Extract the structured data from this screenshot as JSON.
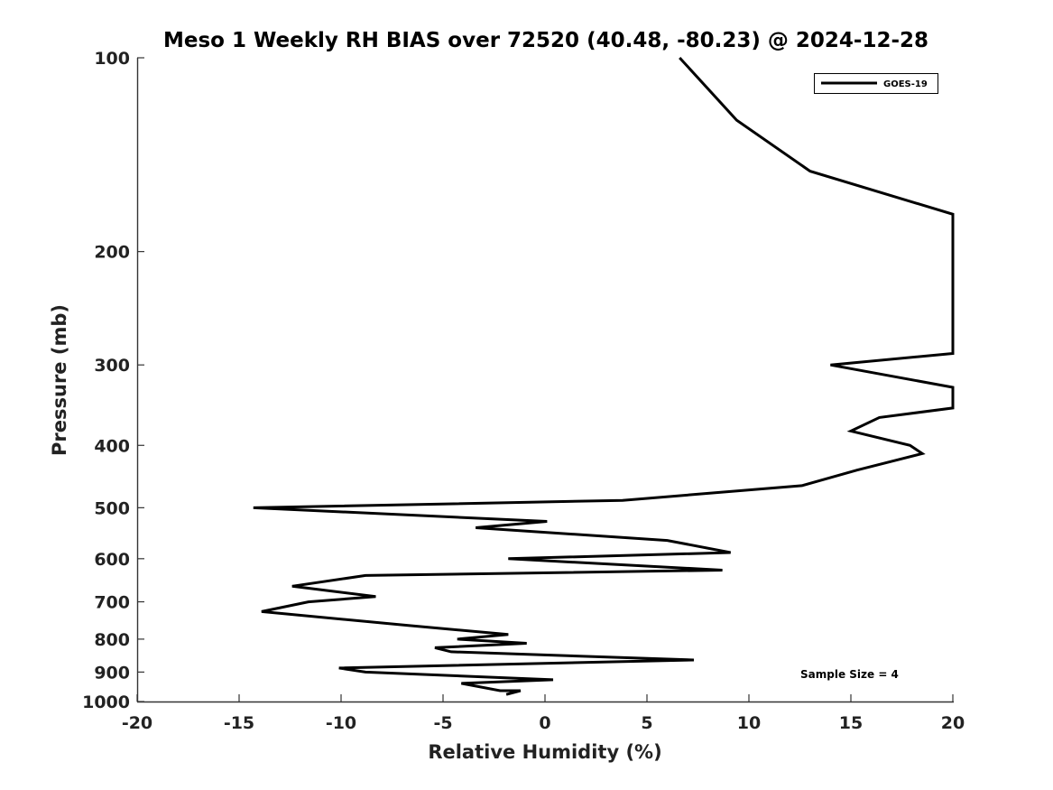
{
  "chart_data": {
    "type": "line",
    "title": "Meso 1 Weekly RH BIAS over 72520 (40.48, -80.23) @ 2024-12-28",
    "xlabel": "Relative Humidity (%)",
    "ylabel": "Pressure (mb)",
    "xlim": [
      -20,
      20
    ],
    "ylim": [
      100,
      1000
    ],
    "y_scale": "log",
    "y_reversed": true,
    "x_ticks": [
      "-20",
      "-15",
      "-10",
      "-5",
      "0",
      "5",
      "10",
      "15",
      "20"
    ],
    "y_ticks": [
      "100",
      "200",
      "300",
      "400",
      "500",
      "600",
      "700",
      "800",
      "900",
      "1000"
    ],
    "grid": false,
    "legend_position": "top-right",
    "annotation": "Sample Size = 4",
    "series": [
      {
        "name": "GOES-19",
        "color": "#000000",
        "points": [
          {
            "x": 6.6,
            "y": 100
          },
          {
            "x": 9.4,
            "y": 125
          },
          {
            "x": 13.0,
            "y": 150
          },
          {
            "x": 20.0,
            "y": 175
          },
          {
            "x": 20.0,
            "y": 288
          },
          {
            "x": 14.0,
            "y": 300
          },
          {
            "x": 20.0,
            "y": 325
          },
          {
            "x": 20.0,
            "y": 350
          },
          {
            "x": 16.4,
            "y": 362
          },
          {
            "x": 15.0,
            "y": 380
          },
          {
            "x": 17.9,
            "y": 400
          },
          {
            "x": 18.5,
            "y": 412
          },
          {
            "x": 15.3,
            "y": 437
          },
          {
            "x": 12.6,
            "y": 462
          },
          {
            "x": 3.8,
            "y": 487
          },
          {
            "x": -14.3,
            "y": 500
          },
          {
            "x": 0.1,
            "y": 525
          },
          {
            "x": -3.4,
            "y": 537
          },
          {
            "x": 6.0,
            "y": 562
          },
          {
            "x": 9.1,
            "y": 587
          },
          {
            "x": -1.8,
            "y": 600
          },
          {
            "x": 8.7,
            "y": 625
          },
          {
            "x": -8.8,
            "y": 637
          },
          {
            "x": -12.4,
            "y": 662
          },
          {
            "x": -8.3,
            "y": 687
          },
          {
            "x": -11.6,
            "y": 700
          },
          {
            "x": -13.9,
            "y": 725
          },
          {
            "x": -6.7,
            "y": 762
          },
          {
            "x": -1.8,
            "y": 787
          },
          {
            "x": -4.3,
            "y": 800
          },
          {
            "x": -0.9,
            "y": 812
          },
          {
            "x": -5.4,
            "y": 825
          },
          {
            "x": -4.6,
            "y": 837
          },
          {
            "x": 7.3,
            "y": 862
          },
          {
            "x": -10.1,
            "y": 887
          },
          {
            "x": -8.8,
            "y": 900
          },
          {
            "x": 0.4,
            "y": 925
          },
          {
            "x": -4.1,
            "y": 937
          },
          {
            "x": -2.2,
            "y": 962
          },
          {
            "x": -1.2,
            "y": 962
          },
          {
            "x": -1.9,
            "y": 975
          }
        ]
      }
    ]
  }
}
